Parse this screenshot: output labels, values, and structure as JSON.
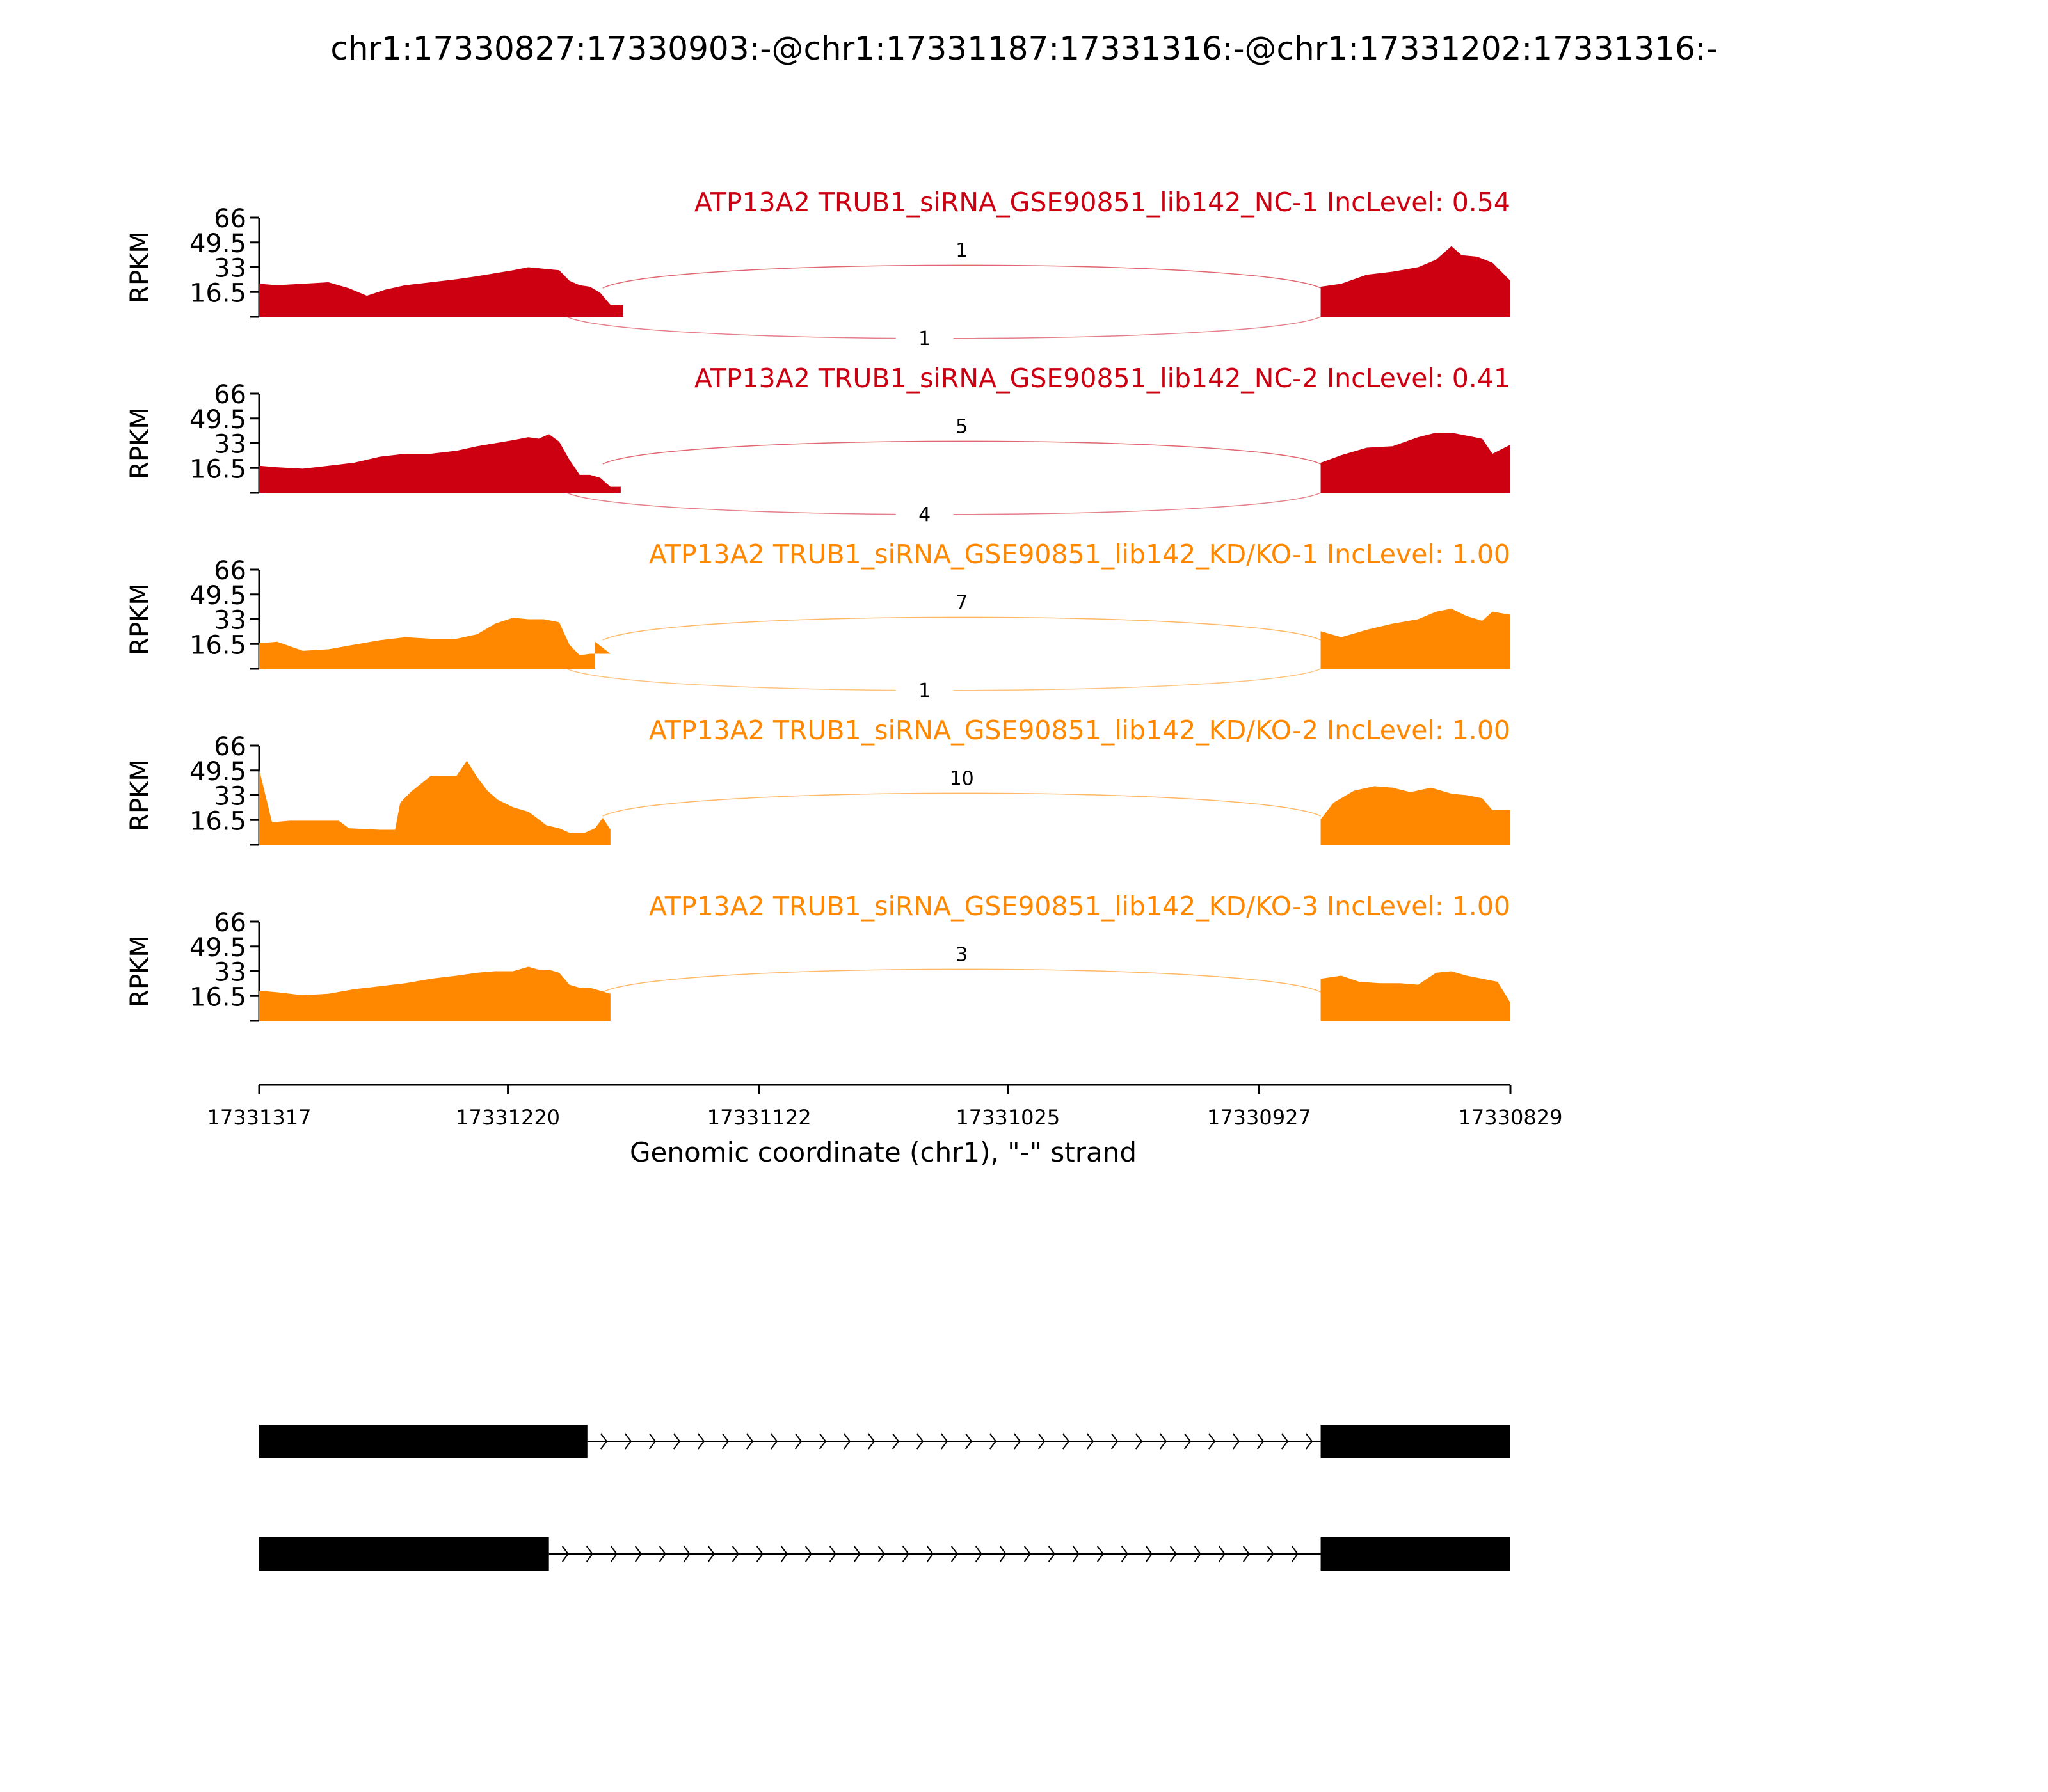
{
  "chart_data": {
    "type": "area",
    "title": "chr1:17330827:17330903:-@chr1:17331187:17331316:-@chr1:17331202:17331316:-",
    "xlabel": "Genomic coordinate (chr1), \"-\" strand",
    "ylabel": "RPKM",
    "x_ticks": [
      "17331317",
      "17331220",
      "17331122",
      "17331025",
      "17330927",
      "17330829"
    ],
    "x_tick_values": [
      17331317,
      17331220,
      17331122,
      17331025,
      17330927,
      17330829
    ],
    "xlim": [
      17331317,
      17330829
    ],
    "ylim": [
      0,
      66
    ],
    "y_ticks": [
      "16.5",
      "33",
      "49.5",
      "66"
    ],
    "y_tick_values": [
      16.5,
      33,
      49.5,
      66
    ],
    "grid": false,
    "tracks": [
      {
        "label": "ATP13A2 TRUB1_siRNA_GSE90851_lib142_NC-1 IncLevel: 0.54",
        "color": "#cc0011",
        "junction_top": "1",
        "junction_bottom": "1",
        "left_exon": [
          [
            17331317,
            22
          ],
          [
            17331310,
            21
          ],
          [
            17331300,
            22
          ],
          [
            17331290,
            23
          ],
          [
            17331282,
            19
          ],
          [
            17331275,
            14
          ],
          [
            17331268,
            18
          ],
          [
            17331260,
            21
          ],
          [
            17331250,
            23
          ],
          [
            17331240,
            25
          ],
          [
            17331232,
            27
          ],
          [
            17331225,
            29
          ],
          [
            17331218,
            31
          ],
          [
            17331212,
            33
          ],
          [
            17331206,
            32
          ],
          [
            17331200,
            31
          ],
          [
            17331196,
            24
          ],
          [
            17331192,
            21
          ],
          [
            17331188,
            20
          ],
          [
            17331184,
            16
          ],
          [
            17331180,
            8
          ],
          [
            17331175,
            8
          ]
        ],
        "right_exon": [
          [
            17330903,
            20
          ],
          [
            17330895,
            22
          ],
          [
            17330885,
            28
          ],
          [
            17330875,
            30
          ],
          [
            17330865,
            33
          ],
          [
            17330858,
            38
          ],
          [
            17330852,
            47
          ],
          [
            17330848,
            41
          ],
          [
            17330842,
            40
          ],
          [
            17330836,
            36
          ],
          [
            17330829,
            24
          ]
        ]
      },
      {
        "label": "ATP13A2 TRUB1_siRNA_GSE90851_lib142_NC-2 IncLevel: 0.41",
        "color": "#cc0011",
        "junction_top": "5",
        "junction_bottom": "4",
        "left_exon": [
          [
            17331317,
            18
          ],
          [
            17331310,
            17
          ],
          [
            17331300,
            16
          ],
          [
            17331290,
            18
          ],
          [
            17331280,
            20
          ],
          [
            17331270,
            24
          ],
          [
            17331260,
            26
          ],
          [
            17331250,
            26
          ],
          [
            17331240,
            28
          ],
          [
            17331232,
            31
          ],
          [
            17331225,
            33
          ],
          [
            17331218,
            35
          ],
          [
            17331212,
            37
          ],
          [
            17331208,
            36
          ],
          [
            17331204,
            39
          ],
          [
            17331200,
            34
          ],
          [
            17331196,
            22
          ],
          [
            17331192,
            12
          ],
          [
            17331188,
            12
          ],
          [
            17331184,
            10
          ],
          [
            17331180,
            4
          ],
          [
            17331176,
            4
          ]
        ],
        "right_exon": [
          [
            17330903,
            20
          ],
          [
            17330895,
            25
          ],
          [
            17330885,
            30
          ],
          [
            17330875,
            31
          ],
          [
            17330865,
            37
          ],
          [
            17330858,
            40
          ],
          [
            17330852,
            40
          ],
          [
            17330846,
            38
          ],
          [
            17330840,
            36
          ],
          [
            17330836,
            26
          ],
          [
            17330829,
            32
          ]
        ]
      },
      {
        "label": "ATP13A2 TRUB1_siRNA_GSE90851_lib142_KD/KO-1 IncLevel: 1.00",
        "color": "#ff8800",
        "junction_top": "7",
        "junction_bottom": "1",
        "left_exon": [
          [
            17331317,
            17
          ],
          [
            17331310,
            18
          ],
          [
            17331300,
            12
          ],
          [
            17331290,
            13
          ],
          [
            17331280,
            16
          ],
          [
            17331270,
            19
          ],
          [
            17331260,
            21
          ],
          [
            17331250,
            20
          ],
          [
            17331240,
            20
          ],
          [
            17331232,
            23
          ],
          [
            17331225,
            30
          ],
          [
            17331218,
            34
          ],
          [
            17331212,
            33
          ],
          [
            17331206,
            33
          ],
          [
            17331200,
            31
          ],
          [
            17331196,
            16
          ],
          [
            17331192,
            9
          ],
          [
            17331188,
            10
          ],
          [
            17331184,
            10
          ],
          [
            17331180,
            10
          ],
          [
            17331186,
            18
          ]
        ],
        "right_exon": [
          [
            17330903,
            25
          ],
          [
            17330895,
            21
          ],
          [
            17330885,
            26
          ],
          [
            17330875,
            30
          ],
          [
            17330865,
            33
          ],
          [
            17330858,
            38
          ],
          [
            17330852,
            40
          ],
          [
            17330846,
            35
          ],
          [
            17330840,
            32
          ],
          [
            17330836,
            38
          ],
          [
            17330829,
            36
          ]
        ]
      },
      {
        "label": "ATP13A2 TRUB1_siRNA_GSE90851_lib142_KD/KO-2 IncLevel: 1.00",
        "color": "#ff8800",
        "junction_top": "10",
        "junction_bottom": "",
        "left_exon": [
          [
            17331317,
            50
          ],
          [
            17331312,
            15
          ],
          [
            17331305,
            16
          ],
          [
            17331298,
            16
          ],
          [
            17331286,
            16
          ],
          [
            17331282,
            11
          ],
          [
            17331270,
            10
          ],
          [
            17331264,
            10
          ],
          [
            17331262,
            28
          ],
          [
            17331258,
            35
          ],
          [
            17331250,
            46
          ],
          [
            17331240,
            46
          ],
          [
            17331236,
            56
          ],
          [
            17331232,
            45
          ],
          [
            17331228,
            36
          ],
          [
            17331224,
            30
          ],
          [
            17331218,
            25
          ],
          [
            17331212,
            22
          ],
          [
            17331208,
            17
          ],
          [
            17331205,
            13
          ],
          [
            17331200,
            11
          ],
          [
            17331196,
            8
          ],
          [
            17331190,
            8
          ],
          [
            17331186,
            11
          ],
          [
            17331183,
            18
          ],
          [
            17331180,
            10
          ]
        ],
        "right_exon": [
          [
            17330903,
            17
          ],
          [
            17330898,
            28
          ],
          [
            17330890,
            36
          ],
          [
            17330882,
            39
          ],
          [
            17330875,
            38
          ],
          [
            17330868,
            35
          ],
          [
            17330860,
            38
          ],
          [
            17330852,
            34
          ],
          [
            17330846,
            33
          ],
          [
            17330840,
            31
          ],
          [
            17330836,
            23
          ],
          [
            17330829,
            23
          ]
        ]
      },
      {
        "label": "ATP13A2 TRUB1_siRNA_GSE90851_lib142_KD/KO-3 IncLevel: 1.00",
        "color": "#ff8800",
        "junction_top": "3",
        "junction_bottom": "",
        "left_exon": [
          [
            17331317,
            20
          ],
          [
            17331310,
            19
          ],
          [
            17331300,
            17
          ],
          [
            17331290,
            18
          ],
          [
            17331280,
            21
          ],
          [
            17331270,
            23
          ],
          [
            17331260,
            25
          ],
          [
            17331250,
            28
          ],
          [
            17331240,
            30
          ],
          [
            17331232,
            32
          ],
          [
            17331225,
            33
          ],
          [
            17331218,
            33
          ],
          [
            17331212,
            36
          ],
          [
            17331208,
            34
          ],
          [
            17331204,
            34
          ],
          [
            17331200,
            32
          ],
          [
            17331196,
            24
          ],
          [
            17331192,
            22
          ],
          [
            17331188,
            22
          ],
          [
            17331184,
            20
          ],
          [
            17331180,
            18
          ]
        ],
        "right_exon": [
          [
            17330903,
            28
          ],
          [
            17330895,
            30
          ],
          [
            17330888,
            26
          ],
          [
            17330880,
            25
          ],
          [
            17330872,
            25
          ],
          [
            17330865,
            24
          ],
          [
            17330858,
            32
          ],
          [
            17330852,
            33
          ],
          [
            17330846,
            30
          ],
          [
            17330840,
            28
          ],
          [
            17330834,
            26
          ],
          [
            17330829,
            12
          ]
        ]
      }
    ],
    "gene_models": [
      {
        "exons": [
          [
            17331317,
            17331189
          ],
          [
            17330903,
            17330829
          ]
        ],
        "intron": [
          17331189,
          17330903
        ],
        "strand": "-"
      },
      {
        "exons": [
          [
            17331317,
            17331204
          ],
          [
            17330903,
            17330829
          ]
        ],
        "intron": [
          17331204,
          17330903
        ],
        "strand": "-"
      }
    ]
  }
}
